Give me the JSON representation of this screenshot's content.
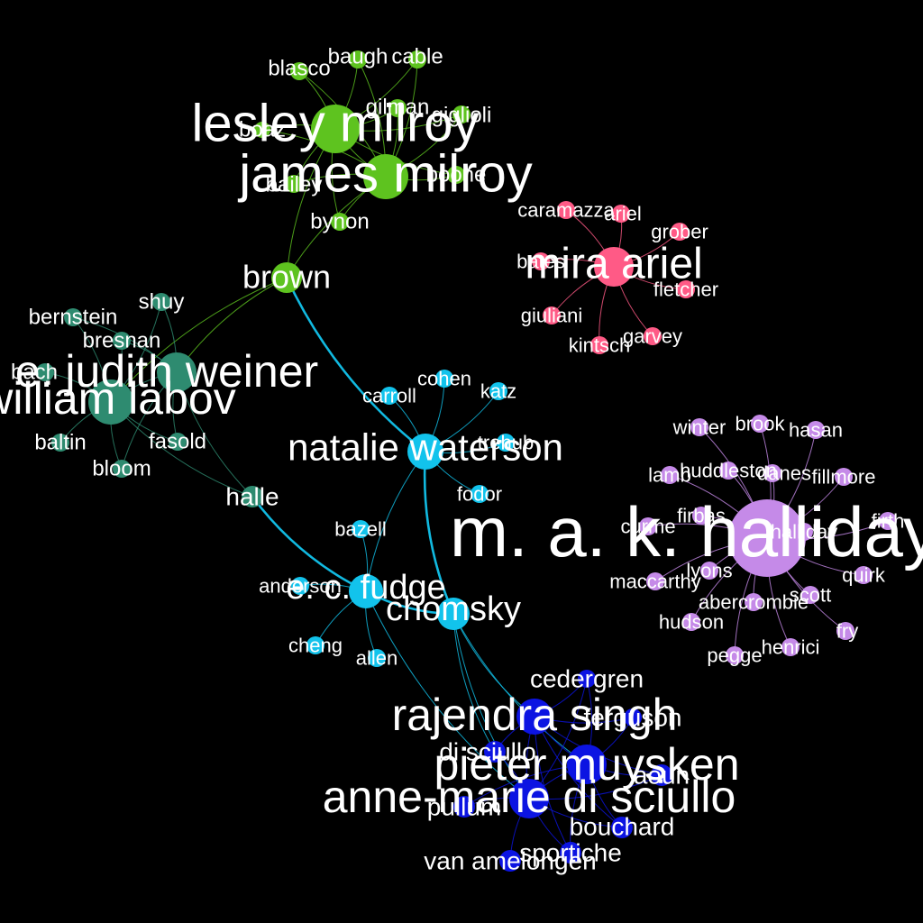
{
  "colors": {
    "background": "#000000",
    "green": "#5ec31f",
    "teal": "#2e8b70",
    "pink": "#ff5a86",
    "cyan": "#12c3ec",
    "purple": "#c58ae8",
    "blue": "#0c14e2",
    "label": "#ffffff"
  },
  "clusters": [
    {
      "name": "green",
      "hub": "james milroy",
      "nodes": [
        {
          "id": "lesley milroy",
          "label": "lesley milroy"
        },
        {
          "id": "james milroy",
          "label": "james milroy"
        },
        {
          "id": "blasco",
          "label": "blasco"
        },
        {
          "id": "baugh",
          "label": "baugh"
        },
        {
          "id": "cable",
          "label": "cable"
        },
        {
          "id": "gilman",
          "label": "gilman"
        },
        {
          "id": "giglioli",
          "label": "giglioli"
        },
        {
          "id": "boaz",
          "label": "boaz"
        },
        {
          "id": "bailey",
          "label": "bailey"
        },
        {
          "id": "boone",
          "label": "boone"
        },
        {
          "id": "bynon",
          "label": "bynon"
        },
        {
          "id": "brown",
          "label": "brown"
        }
      ]
    },
    {
      "name": "teal",
      "hub": "william labov",
      "nodes": [
        {
          "id": "judith weiner",
          "label": "e. judith weiner"
        },
        {
          "id": "william labov",
          "label": "william labov"
        },
        {
          "id": "bernstein",
          "label": "bernstein"
        },
        {
          "id": "shuy",
          "label": "shuy"
        },
        {
          "id": "bresnan",
          "label": "bresnan"
        },
        {
          "id": "bach",
          "label": "bach"
        },
        {
          "id": "baltin",
          "label": "baltin"
        },
        {
          "id": "fasold",
          "label": "fasold"
        },
        {
          "id": "bloom",
          "label": "bloom"
        },
        {
          "id": "halle",
          "label": "halle"
        }
      ]
    },
    {
      "name": "pink",
      "hub": "mira ariel",
      "nodes": [
        {
          "id": "mira ariel",
          "label": "mira ariel"
        },
        {
          "id": "caramazza",
          "label": "caramazza"
        },
        {
          "id": "ariel",
          "label": "ariel"
        },
        {
          "id": "grober",
          "label": "grober"
        },
        {
          "id": "bates",
          "label": "bates"
        },
        {
          "id": "fletcher",
          "label": "fletcher"
        },
        {
          "id": "giuliani",
          "label": "giuliani"
        },
        {
          "id": "garvey",
          "label": "garvey"
        },
        {
          "id": "kintsch",
          "label": "kintsch"
        }
      ]
    },
    {
      "name": "cyan",
      "hub": "natalie waterson",
      "nodes": [
        {
          "id": "natalie waterson",
          "label": "natalie waterson"
        },
        {
          "id": "cohen",
          "label": "cohen"
        },
        {
          "id": "katz",
          "label": "katz"
        },
        {
          "id": "carroll",
          "label": "carroll"
        },
        {
          "id": "trehub",
          "label": "trehub"
        },
        {
          "id": "fodor",
          "label": "fodor"
        },
        {
          "id": "e. c. fudge",
          "label": "e. c. fudge"
        },
        {
          "id": "chomsky",
          "label": "chomsky"
        },
        {
          "id": "bazell",
          "label": "bazell"
        },
        {
          "id": "anderson",
          "label": "anderson"
        },
        {
          "id": "cheng",
          "label": "cheng"
        },
        {
          "id": "allen",
          "label": "allen"
        }
      ]
    },
    {
      "name": "purple",
      "hub": "m. a. k. halliday",
      "nodes": [
        {
          "id": "m. a. k. halliday",
          "label": "m. a. k. halliday"
        },
        {
          "id": "winter",
          "label": "winter"
        },
        {
          "id": "brook",
          "label": "brook"
        },
        {
          "id": "hasan",
          "label": "hasan"
        },
        {
          "id": "lamb",
          "label": "lamb"
        },
        {
          "id": "huddleston",
          "label": "huddleston"
        },
        {
          "id": "danes",
          "label": "danes"
        },
        {
          "id": "fillmore",
          "label": "fillmore"
        },
        {
          "id": "curme",
          "label": "curme"
        },
        {
          "id": "firbas",
          "label": "firbas"
        },
        {
          "id": "halliday",
          "label": "halliday"
        },
        {
          "id": "firth",
          "label": "firth"
        },
        {
          "id": "lyons",
          "label": "lyons"
        },
        {
          "id": "maccarthy",
          "label": "maccarthy"
        },
        {
          "id": "quirk",
          "label": "quirk"
        },
        {
          "id": "abercrombie",
          "label": "abercrombie"
        },
        {
          "id": "scott",
          "label": "scott"
        },
        {
          "id": "hudson",
          "label": "hudson"
        },
        {
          "id": "fry",
          "label": "fry"
        },
        {
          "id": "pegge",
          "label": "pegge"
        },
        {
          "id": "henrici",
          "label": "henrici"
        }
      ]
    },
    {
      "name": "blue",
      "hub": "anne-marie di sciullo",
      "nodes": [
        {
          "id": "cedergren",
          "label": "cedergren"
        },
        {
          "id": "rajendra singh",
          "label": "rajendra singh"
        },
        {
          "id": "ferguson",
          "label": "ferguson"
        },
        {
          "id": "di sciullo",
          "label": "di sciullo"
        },
        {
          "id": "pieter muysken",
          "label": "pieter muysken"
        },
        {
          "id": "aoun",
          "label": "aoun"
        },
        {
          "id": "anne-marie di sciullo",
          "label": "anne-marie di sciullo"
        },
        {
          "id": "pullum",
          "label": "pullum"
        },
        {
          "id": "bouchard",
          "label": "bouchard"
        },
        {
          "id": "sportiche",
          "label": "sportiche"
        },
        {
          "id": "van amelongen",
          "label": "van amelongen"
        }
      ]
    }
  ]
}
